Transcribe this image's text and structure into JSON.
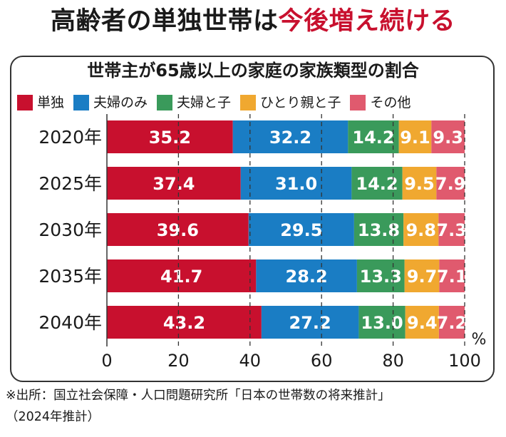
{
  "headline": {
    "part1": "高齢者の単独世帯は",
    "part2": "今後増え続ける"
  },
  "chart_data": {
    "type": "bar",
    "orientation": "horizontal",
    "stacked": true,
    "title": "世帯主が65歳以上の家庭の家族類型の割合",
    "categories": [
      "2020年",
      "2025年",
      "2030年",
      "2035年",
      "2040年"
    ],
    "series": [
      {
        "name": "単独",
        "color": "#c8102e",
        "values": [
          35.2,
          37.4,
          39.6,
          41.7,
          43.2
        ]
      },
      {
        "name": "夫婦のみ",
        "color": "#1a7dc4",
        "values": [
          32.2,
          31.0,
          29.5,
          28.2,
          27.2
        ]
      },
      {
        "name": "夫婦と子",
        "color": "#3a9a5b",
        "values": [
          14.2,
          14.2,
          13.8,
          13.3,
          13.0
        ]
      },
      {
        "name": "ひとり親と子",
        "color": "#f0a830",
        "values": [
          9.1,
          9.5,
          9.8,
          9.7,
          9.4
        ]
      },
      {
        "name": "その他",
        "color": "#e05a6e",
        "values": [
          9.3,
          7.9,
          7.3,
          7.1,
          7.2
        ]
      }
    ],
    "xlim": [
      0,
      100
    ],
    "xticks": [
      "0",
      "20",
      "40",
      "60",
      "80",
      "100"
    ],
    "unit": "%",
    "grid": "dashed vertical",
    "legend_position": "top"
  },
  "source": {
    "line1": "※出所：国立社会保障・人口問題研究所「日本の世帯数の将来推計」",
    "line2": "（2024年推計）"
  }
}
